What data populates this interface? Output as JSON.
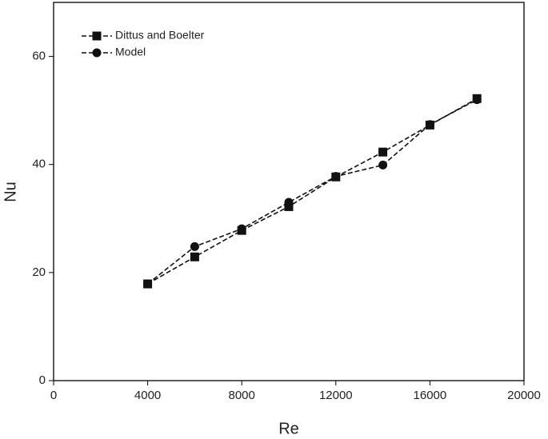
{
  "chart_data": {
    "type": "line",
    "x_label": "Re",
    "y_label": "Nu",
    "x": [
      4000,
      6000,
      8000,
      10000,
      12000,
      14000,
      16000,
      18000
    ],
    "series": [
      {
        "name": "Dittus and Boelter",
        "color": "#111111",
        "marker": "square",
        "values": [
          17.9,
          22.9,
          27.8,
          32.2,
          37.7,
          42.3,
          47.3,
          52.2
        ]
      },
      {
        "name": "Model",
        "color": "#111111",
        "marker": "circle",
        "values": [
          17.9,
          24.8,
          28.1,
          33.0,
          37.8,
          39.9,
          47.4,
          52.0
        ]
      }
    ],
    "xlim": [
      0,
      20000
    ],
    "xticks": [
      0,
      4000,
      8000,
      12000,
      16000,
      20000
    ],
    "ylim": [
      0,
      70
    ],
    "yticks": [
      0,
      20,
      40,
      60
    ],
    "legend": "top-left"
  }
}
